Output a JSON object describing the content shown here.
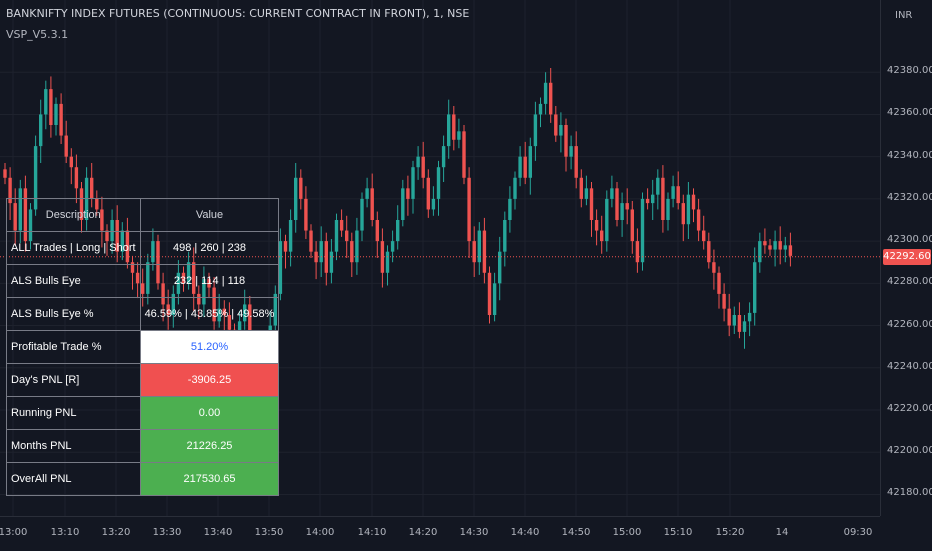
{
  "header": {
    "title": "BANKNIFTY INDEX FUTURES (CONTINUOUS: CURRENT CONTRACT IN FRONT), 1, NSE",
    "indicator": "VSP_V5.3.1"
  },
  "price_scale": {
    "currency": "INR",
    "ticks": [
      "42380.00",
      "42360.00",
      "42340.00",
      "42320.00",
      "42300.00",
      "42280.00",
      "42260.00",
      "42240.00",
      "42220.00",
      "42200.00",
      "42180.00"
    ],
    "last_price": "42292.60",
    "last_price_color": "#ef5350"
  },
  "time_scale": {
    "ticks": [
      "13:00",
      "13:10",
      "13:20",
      "13:30",
      "13:40",
      "13:50",
      "14:00",
      "14:10",
      "14:20",
      "14:30",
      "14:40",
      "14:50",
      "15:00",
      "15:10",
      "15:20",
      "14",
      "09:30"
    ]
  },
  "colors": {
    "up": "#26a69a",
    "down": "#ef5350",
    "background": "#131722"
  },
  "stats_table": {
    "headers": [
      "Description",
      "Value"
    ],
    "rows": [
      {
        "label": "ALL Trades | Long | Short",
        "value": "498 | 260 | 238",
        "style": "bg-none"
      },
      {
        "label": "ALS Bulls Eye",
        "value": "232 | 114 | 118",
        "style": "bg-none"
      },
      {
        "label": "ALS Bulls Eye %",
        "value": "46.59% | 43.85% | 49.58%",
        "style": "bg-none"
      },
      {
        "label": "Profitable Trade %",
        "value": "51.20%",
        "style": "bg-white"
      },
      {
        "label": "Day's PNL [R]",
        "value": "-3906.25",
        "style": "bg-red"
      },
      {
        "label": "Running PNL",
        "value": "0.00",
        "style": "bg-green"
      },
      {
        "label": "Months PNL",
        "value": "21226.25",
        "style": "bg-green"
      },
      {
        "label": "OverAll PNL",
        "value": "217530.65",
        "style": "bg-green"
      }
    ]
  },
  "chart_data": {
    "type": "candlestick",
    "ylim": [
      42175,
      42400
    ],
    "x_ticks": [
      "13:00",
      "13:10",
      "13:20",
      "13:30",
      "13:40",
      "13:50",
      "14:00",
      "14:10",
      "14:20",
      "14:30",
      "14:40",
      "14:50",
      "15:00",
      "15:10",
      "15:20"
    ],
    "closes": [
      42330,
      42318,
      42305,
      42325,
      42300,
      42315,
      42345,
      42360,
      42372,
      42355,
      42365,
      42350,
      42340,
      42335,
      42325,
      42310,
      42330,
      42320,
      42315,
      42305,
      42300,
      42310,
      42295,
      42305,
      42290,
      42285,
      42280,
      42275,
      42290,
      42300,
      42280,
      42270,
      42265,
      42275,
      42285,
      42280,
      42290,
      42275,
      42270,
      42282,
      42278,
      42262,
      42268,
      42265,
      42258,
      42250,
      42262,
      42270,
      42240,
      42250,
      42238,
      42245,
      42260,
      42275,
      42300,
      42295,
      42310,
      42330,
      42320,
      42305,
      42295,
      42290,
      42300,
      42285,
      42295,
      42310,
      42305,
      42300,
      42290,
      42305,
      42320,
      42325,
      42310,
      42300,
      42285,
      42295,
      42300,
      42310,
      42325,
      42320,
      42335,
      42340,
      42330,
      42315,
      42320,
      42335,
      42345,
      42360,
      42348,
      42352,
      42330,
      42300,
      42290,
      42305,
      42285,
      42265,
      42280,
      42295,
      42310,
      42320,
      42330,
      42340,
      42330,
      42345,
      42360,
      42365,
      42375,
      42360,
      42350,
      42355,
      42340,
      42345,
      42330,
      42320,
      42325,
      42310,
      42305,
      42300,
      42320,
      42325,
      42310,
      42318,
      42315,
      42300,
      42290,
      42320,
      42318,
      42322,
      42330,
      42310,
      42320,
      42326,
      42318,
      42308,
      42322,
      42315,
      42305,
      42300,
      42290,
      42285,
      42275,
      42268,
      42260,
      42265,
      42257,
      42262,
      42266,
      42290,
      42300,
      42298,
      42296,
      42300,
      42296,
      42298,
      42293
    ]
  }
}
